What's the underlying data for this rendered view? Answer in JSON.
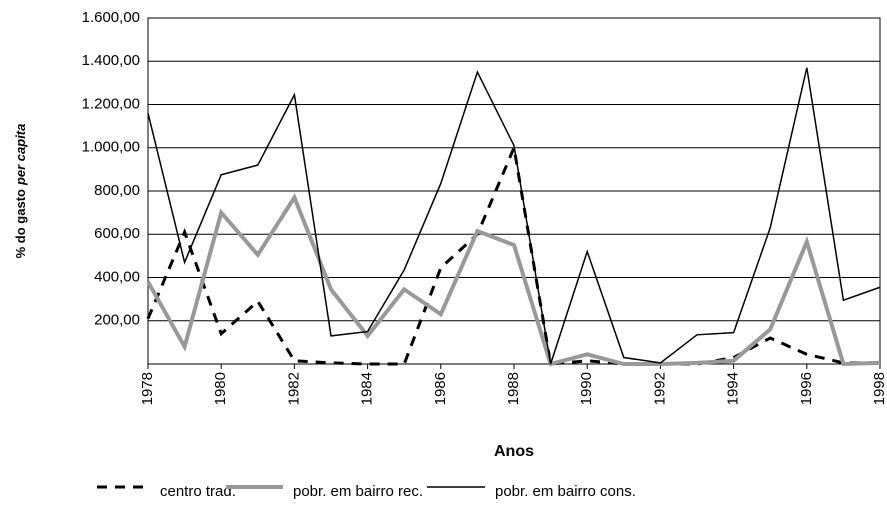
{
  "chart_data": {
    "type": "line",
    "x_label": "Anos",
    "y_label": [
      "% do gasto",
      "per capita"
    ],
    "x": [
      1978,
      1979,
      1980,
      1981,
      1982,
      1983,
      1984,
      1985,
      1986,
      1987,
      1988,
      1989,
      1990,
      1991,
      1992,
      1993,
      1994,
      1995,
      1996,
      1997,
      1998
    ],
    "xlim": [
      1978,
      1998
    ],
    "xticks": [
      1978,
      1980,
      1982,
      1984,
      1986,
      1988,
      1990,
      1992,
      1994,
      1996,
      1998
    ],
    "ylim": [
      0,
      1600
    ],
    "yticks": [
      {
        "value": 200,
        "label": "200,00"
      },
      {
        "value": 400,
        "label": "400,00"
      },
      {
        "value": 600,
        "label": "600,00"
      },
      {
        "value": 800,
        "label": "800,00"
      },
      {
        "value": 1000,
        "label": "1.000,00"
      },
      {
        "value": 1200,
        "label": "1.200,00"
      },
      {
        "value": 1400,
        "label": "1.400,00"
      },
      {
        "value": 1600,
        "label": "1.600,00"
      }
    ],
    "grid": true,
    "legend": "bottom",
    "series": [
      {
        "name": "centro trad.",
        "color": "#000000",
        "style": "dashed",
        "values": [
          210,
          610,
          140,
          290,
          15,
          5,
          0,
          0,
          445,
          600,
          1000,
          0,
          15,
          0,
          0,
          0,
          30,
          120,
          45,
          5,
          5
        ]
      },
      {
        "name": "pobr. em bairro rec.",
        "color": "#999999",
        "style": "thick",
        "values": [
          380,
          80,
          700,
          505,
          770,
          345,
          130,
          345,
          230,
          615,
          550,
          0,
          45,
          0,
          0,
          5,
          15,
          160,
          565,
          0,
          5
        ]
      },
      {
        "name": "pobr. em bairro cons.",
        "color": "#000000",
        "style": "thin",
        "values": [
          1160,
          470,
          875,
          920,
          1245,
          130,
          150,
          435,
          835,
          1350,
          1010,
          0,
          520,
          30,
          5,
          135,
          145,
          630,
          1370,
          295,
          355
        ]
      }
    ]
  }
}
